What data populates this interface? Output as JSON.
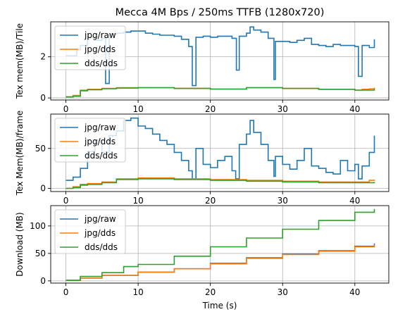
{
  "title": "Mecca 4M Bps / 250ms TTFB (1280x720)",
  "chart_data": [
    {
      "type": "line",
      "ylabel": "Tex mem(MB)/Tile",
      "xlabel": "",
      "xlim": [
        -2.1,
        44.7
      ],
      "ylim": [
        -0.1,
        3.7
      ],
      "xticks": [
        0,
        10,
        20,
        30,
        40
      ],
      "yticks": [
        0,
        2
      ],
      "grid": true,
      "legend": "upper-left",
      "series": [
        {
          "name": "jpg/raw",
          "color": "#1f77b4",
          "x": [
            0,
            1,
            1.5,
            2,
            3,
            4,
            5,
            5.5,
            6,
            7,
            8,
            9,
            10,
            11,
            12,
            13,
            14,
            15,
            16,
            17,
            17.5,
            18,
            19,
            20,
            21,
            22,
            23,
            23.6,
            24,
            25,
            25.5,
            26,
            27,
            28,
            28.8,
            29,
            30,
            31,
            32,
            33,
            34,
            35,
            36,
            37,
            38,
            39,
            40,
            40.5,
            41,
            42,
            42.7
          ],
          "y": [
            2.05,
            2.05,
            2.35,
            2.55,
            2.95,
            2.8,
            2.9,
            0.7,
            3.1,
            3.15,
            3.2,
            3.25,
            3.25,
            3.15,
            3.1,
            3.05,
            3.05,
            3.0,
            2.85,
            2.5,
            0.6,
            2.95,
            3.0,
            2.95,
            3.0,
            3.0,
            2.9,
            1.35,
            3.0,
            3.15,
            3.45,
            3.3,
            3.2,
            2.9,
            0.9,
            2.75,
            2.75,
            2.7,
            2.8,
            2.9,
            2.6,
            2.55,
            2.5,
            2.6,
            2.55,
            2.55,
            2.5,
            1.05,
            2.55,
            2.45,
            2.85
          ]
        },
        {
          "name": "jpg/dds",
          "color": "#ff7f0e",
          "x": [
            0,
            1,
            2,
            3,
            5,
            7,
            10,
            15,
            20,
            25,
            30,
            35,
            40,
            41,
            42,
            42.7
          ],
          "y": [
            0.05,
            0.12,
            0.38,
            0.42,
            0.46,
            0.5,
            0.5,
            0.47,
            0.43,
            0.5,
            0.46,
            0.42,
            0.38,
            0.42,
            0.44,
            0.5
          ]
        },
        {
          "name": "dds/dds",
          "color": "#2ca02c",
          "x": [
            0,
            1,
            2,
            3,
            5,
            7,
            10,
            15,
            20,
            25,
            30,
            35,
            40,
            42.7
          ],
          "y": [
            0.05,
            0.08,
            0.35,
            0.4,
            0.45,
            0.48,
            0.5,
            0.46,
            0.43,
            0.5,
            0.46,
            0.42,
            0.38,
            0.45
          ]
        }
      ]
    },
    {
      "type": "line",
      "ylabel": "Tex Mem(MB)/frame",
      "xlabel": "",
      "xlim": [
        -2.1,
        44.7
      ],
      "ylim": [
        -4,
        93
      ],
      "xticks": [
        0,
        10,
        20,
        30,
        40
      ],
      "yticks": [
        0,
        50
      ],
      "grid": true,
      "legend": "upper-left",
      "series": [
        {
          "name": "jpg/raw",
          "color": "#1f77b4",
          "x": [
            0,
            1,
            2,
            3,
            4,
            5,
            6,
            7,
            8,
            9,
            10,
            11,
            12,
            13,
            14,
            15,
            16,
            17,
            17.5,
            18,
            19,
            20,
            21,
            22,
            23,
            23.5,
            24,
            25,
            25.5,
            26,
            27,
            28,
            28.8,
            29,
            30,
            31,
            32,
            33,
            34,
            35,
            36,
            37,
            38,
            39,
            40,
            40.5,
            41,
            42,
            42.7
          ],
          "y": [
            10,
            14,
            25,
            46,
            60,
            45,
            66,
            72,
            85,
            88,
            78,
            75,
            68,
            60,
            55,
            45,
            35,
            22,
            12,
            50,
            30,
            26,
            35,
            40,
            22,
            12,
            55,
            68,
            85,
            70,
            55,
            35,
            15,
            40,
            30,
            24,
            35,
            50,
            28,
            25,
            20,
            18,
            35,
            22,
            30,
            12,
            28,
            45,
            66
          ]
        },
        {
          "name": "jpg/dds",
          "color": "#ff7f0e",
          "x": [
            0,
            1,
            2,
            3,
            5,
            7,
            10,
            15,
            20,
            25,
            30,
            35,
            40,
            42,
            42.7
          ],
          "y": [
            0,
            2,
            5,
            6,
            8,
            12,
            13,
            12,
            11,
            10,
            9,
            8,
            8,
            10,
            11
          ]
        },
        {
          "name": "dds/dds",
          "color": "#2ca02c",
          "x": [
            0,
            1,
            2,
            3,
            5,
            7,
            10,
            15,
            20,
            25,
            30,
            35,
            40,
            42.7
          ],
          "y": [
            0,
            1,
            4,
            5,
            7,
            11,
            12,
            11,
            10,
            9,
            8,
            7,
            7,
            8
          ]
        }
      ]
    },
    {
      "type": "line",
      "ylabel": "Download (MB)",
      "xlabel": "Time (s)",
      "xlim": [
        -2.1,
        44.7
      ],
      "ylim": [
        -4,
        137
      ],
      "xticks": [
        0,
        10,
        20,
        30,
        40
      ],
      "yticks": [
        0,
        50,
        100
      ],
      "grid": true,
      "legend": "upper-left",
      "series": [
        {
          "name": "jpg/raw",
          "color": "#1f77b4",
          "x": [
            0,
            2,
            5,
            10,
            15,
            20,
            25,
            30,
            35,
            40,
            42.7
          ],
          "y": [
            1,
            5,
            10,
            16,
            22,
            32,
            42,
            49,
            55,
            63,
            68
          ]
        },
        {
          "name": "jpg/dds",
          "color": "#ff7f0e",
          "x": [
            0,
            2,
            5,
            10,
            15,
            20,
            25,
            30,
            35,
            40,
            42.7
          ],
          "y": [
            1,
            5,
            10,
            16,
            22,
            31,
            41,
            48,
            54,
            62,
            66
          ]
        },
        {
          "name": "dds/dds",
          "color": "#2ca02c",
          "x": [
            0,
            2,
            5,
            8,
            10,
            15,
            20,
            25,
            30,
            35,
            40,
            42.7
          ],
          "y": [
            1,
            8,
            15,
            26,
            30,
            45,
            62,
            78,
            94,
            110,
            125,
            131
          ]
        }
      ]
    }
  ]
}
